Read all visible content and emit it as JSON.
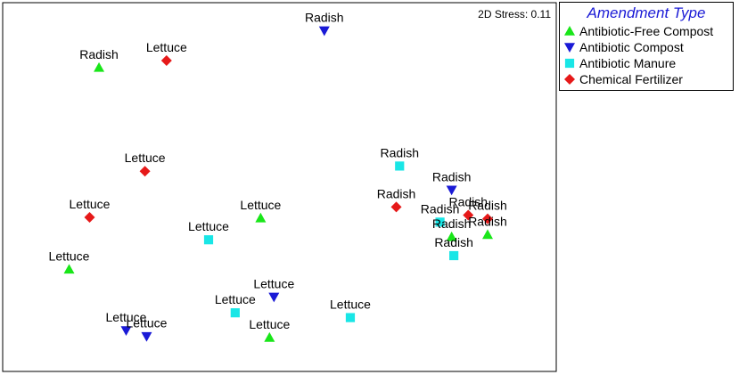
{
  "colors": {
    "Antibiotic-Free Compost": "#19e619",
    "Antibiotic Compost": "#1a1ad6",
    "Antibiotic Manure": "#19e6e6",
    "Chemical Fertilizer": "#e61919"
  },
  "shapes": {
    "Antibiotic-Free Compost": "triangle-up",
    "Antibiotic Compost": "triangle-down",
    "Antibiotic Manure": "square",
    "Chemical Fertilizer": "diamond"
  },
  "chart_data": {
    "type": "scatter",
    "title": "",
    "xlabel": "",
    "ylabel": "",
    "grid": false,
    "stress_text": "2D Stress: 0.11",
    "legend": {
      "title": "Amendment Type",
      "placement": "top-right outside",
      "entries": [
        "Antibiotic-Free Compost",
        "Antibiotic Compost",
        "Antibiotic Manure",
        "Chemical Fertilizer"
      ]
    },
    "xlim": [
      0,
      100
    ],
    "ylim": [
      0,
      100
    ],
    "points": [
      {
        "x": 17.4,
        "y": 82.4,
        "label": "Radish",
        "group": "Antibiotic-Free Compost"
      },
      {
        "x": 29.6,
        "y": 84.3,
        "label": "Lettuce",
        "group": "Chemical Fertilizer"
      },
      {
        "x": 58.1,
        "y": 92.4,
        "label": "Radish",
        "group": "Antibiotic Compost"
      },
      {
        "x": 25.7,
        "y": 54.3,
        "label": "Lettuce",
        "group": "Chemical Fertilizer"
      },
      {
        "x": 15.7,
        "y": 41.8,
        "label": "Lettuce",
        "group": "Chemical Fertilizer"
      },
      {
        "x": 12.0,
        "y": 27.7,
        "label": "Lettuce",
        "group": "Antibiotic-Free Compost"
      },
      {
        "x": 46.6,
        "y": 41.6,
        "label": "Lettuce",
        "group": "Antibiotic-Free Compost"
      },
      {
        "x": 37.2,
        "y": 35.7,
        "label": "Lettuce",
        "group": "Antibiotic Manure"
      },
      {
        "x": 71.7,
        "y": 55.7,
        "label": "Radish",
        "group": "Antibiotic Manure"
      },
      {
        "x": 71.1,
        "y": 44.6,
        "label": "Radish",
        "group": "Chemical Fertilizer"
      },
      {
        "x": 81.1,
        "y": 49.2,
        "label": "Radish",
        "group": "Antibiotic Compost"
      },
      {
        "x": 79.0,
        "y": 40.5,
        "label": "Radish",
        "group": "Antibiotic Manure"
      },
      {
        "x": 84.1,
        "y": 42.4,
        "label": "Radish",
        "group": "Chemical Fertilizer"
      },
      {
        "x": 87.6,
        "y": 41.4,
        "label": "Radish",
        "group": "Chemical Fertilizer"
      },
      {
        "x": 81.1,
        "y": 36.5,
        "label": "Radish",
        "group": "Antibiotic-Free Compost"
      },
      {
        "x": 87.6,
        "y": 37.1,
        "label": "Radish",
        "group": "Antibiotic-Free Compost"
      },
      {
        "x": 81.5,
        "y": 31.4,
        "label": "Radish",
        "group": "Antibiotic Manure"
      },
      {
        "x": 49.0,
        "y": 20.2,
        "label": "Lettuce",
        "group": "Antibiotic Compost"
      },
      {
        "x": 42.0,
        "y": 15.9,
        "label": "Lettuce",
        "group": "Antibiotic Manure"
      },
      {
        "x": 62.8,
        "y": 14.6,
        "label": "Lettuce",
        "group": "Antibiotic Manure"
      },
      {
        "x": 48.2,
        "y": 9.2,
        "label": "Lettuce",
        "group": "Antibiotic-Free Compost"
      },
      {
        "x": 22.3,
        "y": 11.1,
        "label": "Lettuce",
        "group": "Antibiotic Compost"
      },
      {
        "x": 26.0,
        "y": 9.5,
        "label": "Lettuce",
        "group": "Antibiotic Compost"
      }
    ]
  }
}
